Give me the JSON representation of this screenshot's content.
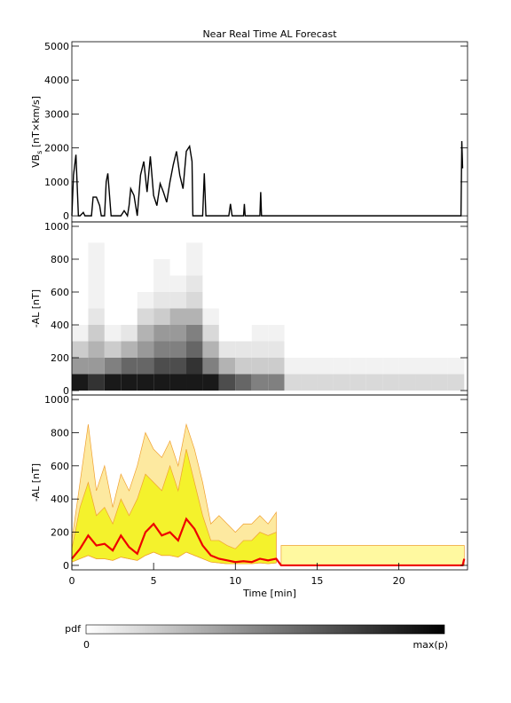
{
  "chart_data": [
    {
      "type": "line",
      "title": "Near Real Time AL Forecast",
      "ylabel": [
        "VB",
        "s",
        " [nT×km/s]"
      ],
      "xlim": [
        0,
        24.2
      ],
      "ylim": [
        -180,
        5130
      ],
      "yticks": [
        0,
        1000,
        2000,
        3000,
        4000,
        5000
      ],
      "series": [
        {
          "color": "#000000",
          "x": [
            0,
            0.1,
            0.25,
            0.4,
            0.5,
            0.7,
            0.8,
            1.2,
            1.3,
            1.5,
            1.7,
            1.8,
            1.95,
            2.0,
            2.1,
            2.2,
            2.4,
            2.6,
            2.8,
            3.0,
            3.2,
            3.4,
            3.5,
            3.6,
            3.8,
            4.0,
            4.2,
            4.4,
            4.6,
            4.8,
            5.0,
            5.2,
            5.4,
            5.6,
            5.8,
            6.0,
            6.2,
            6.4,
            6.6,
            6.8,
            7.0,
            7.2,
            7.35,
            7.4,
            7.5,
            8.0,
            8.1,
            8.2,
            8.3,
            8.4,
            9.0,
            9.6,
            9.7,
            9.8,
            10.5,
            10.55,
            10.6,
            11.5,
            11.55,
            11.6,
            23.8,
            23.85,
            23.9
          ],
          "values": [
            0,
            1200,
            1800,
            0,
            0,
            100,
            0,
            0,
            550,
            550,
            300,
            0,
            0,
            0,
            1000,
            1250,
            0,
            0,
            0,
            0,
            150,
            0,
            300,
            800,
            600,
            0,
            1200,
            1600,
            700,
            1750,
            600,
            300,
            950,
            700,
            400,
            1000,
            1500,
            1900,
            1200,
            800,
            1900,
            2050,
            1600,
            0,
            0,
            0,
            1250,
            0,
            0,
            0,
            0,
            0,
            350,
            0,
            0,
            350,
            0,
            0,
            700,
            0,
            0,
            2200,
            1400
          ]
        }
      ]
    },
    {
      "type": "heatmap",
      "ylabel": "-AL [nT]",
      "xlim": [
        0,
        24.2
      ],
      "ylim": [
        -27,
        1027
      ],
      "yticks": [
        0,
        200,
        400,
        600,
        800,
        1000
      ],
      "xbins": [
        0,
        1,
        2,
        3,
        4,
        5,
        6,
        7,
        8,
        9,
        10,
        11,
        12,
        13,
        14,
        15,
        16,
        17,
        18,
        19,
        20,
        21,
        22,
        23,
        24
      ],
      "ybins": [
        0,
        100,
        200,
        300,
        400,
        500,
        600,
        700,
        800,
        900
      ],
      "z": [
        [
          0.9,
          0.4,
          0.2,
          0.05,
          0,
          0,
          0,
          0,
          0
        ],
        [
          0.8,
          0.4,
          0.3,
          0.2,
          0.1,
          0.05,
          0.05,
          0.05,
          0.05
        ],
        [
          0.9,
          0.5,
          0.2,
          0.05,
          0,
          0,
          0,
          0,
          0
        ],
        [
          0.9,
          0.6,
          0.3,
          0.1,
          0,
          0,
          0,
          0,
          0
        ],
        [
          0.9,
          0.6,
          0.4,
          0.3,
          0.15,
          0.05,
          0,
          0,
          0
        ],
        [
          0.9,
          0.7,
          0.5,
          0.4,
          0.2,
          0.1,
          0.05,
          0.05,
          0
        ],
        [
          0.9,
          0.7,
          0.5,
          0.4,
          0.3,
          0.1,
          0.05,
          0,
          0
        ],
        [
          0.9,
          0.8,
          0.6,
          0.5,
          0.3,
          0.15,
          0.1,
          0.05,
          0.05
        ],
        [
          0.9,
          0.5,
          0.3,
          0.15,
          0.05,
          0,
          0,
          0,
          0
        ],
        [
          0.7,
          0.3,
          0.1,
          0,
          0,
          0,
          0,
          0,
          0
        ],
        [
          0.6,
          0.2,
          0.1,
          0,
          0,
          0,
          0,
          0,
          0
        ],
        [
          0.5,
          0.2,
          0.1,
          0.05,
          0,
          0,
          0,
          0,
          0
        ],
        [
          0.5,
          0.2,
          0.1,
          0.05,
          0,
          0,
          0,
          0,
          0
        ],
        [
          0.15,
          0.05,
          0,
          0,
          0,
          0,
          0,
          0,
          0
        ],
        [
          0.15,
          0.05,
          0,
          0,
          0,
          0,
          0,
          0,
          0
        ],
        [
          0.15,
          0.05,
          0,
          0,
          0,
          0,
          0,
          0,
          0
        ],
        [
          0.15,
          0.05,
          0,
          0,
          0,
          0,
          0,
          0,
          0
        ],
        [
          0.15,
          0.05,
          0,
          0,
          0,
          0,
          0,
          0,
          0
        ],
        [
          0.15,
          0.05,
          0,
          0,
          0,
          0,
          0,
          0,
          0
        ],
        [
          0.15,
          0.05,
          0,
          0,
          0,
          0,
          0,
          0,
          0
        ],
        [
          0.15,
          0.05,
          0,
          0,
          0,
          0,
          0,
          0,
          0
        ],
        [
          0.15,
          0.05,
          0,
          0,
          0,
          0,
          0,
          0,
          0
        ],
        [
          0.15,
          0.05,
          0,
          0,
          0,
          0,
          0,
          0,
          0
        ],
        [
          0.15,
          0.05,
          0,
          0,
          0,
          0,
          0,
          0,
          0
        ]
      ]
    },
    {
      "type": "band",
      "ylabel": "-AL [nT]",
      "xlabel": "Time [min]",
      "xlim": [
        0,
        24.2
      ],
      "ylim": [
        -27,
        1027
      ],
      "yticks": [
        0,
        200,
        400,
        600,
        800,
        1000
      ],
      "xticks": [
        0,
        5,
        10,
        15,
        20
      ],
      "series": [
        {
          "color": "#fff9a0",
          "x": [
            12.8,
            24
          ],
          "lower": [
            0,
            0
          ],
          "upper": [
            120,
            120
          ]
        },
        {
          "color": "#fde9a0",
          "x": [
            0,
            0.5,
            1,
            1.5,
            2,
            2.5,
            3,
            3.5,
            4,
            4.5,
            5,
            5.5,
            6,
            6.5,
            7,
            7.5,
            8,
            8.5,
            9,
            9.5,
            10,
            10.5,
            11,
            11.5,
            12,
            12.5
          ],
          "lower": [
            20,
            40,
            60,
            40,
            40,
            30,
            50,
            40,
            30,
            60,
            80,
            60,
            60,
            50,
            80,
            60,
            40,
            20,
            15,
            10,
            10,
            10,
            10,
            15,
            10,
            15
          ],
          "upper": [
            150,
            500,
            850,
            450,
            600,
            350,
            550,
            450,
            600,
            800,
            700,
            650,
            750,
            600,
            850,
            700,
            500,
            250,
            300,
            250,
            200,
            250,
            250,
            300,
            250,
            320
          ]
        },
        {
          "color": "#f4f22c",
          "x": [
            0,
            0.5,
            1,
            1.5,
            2,
            2.5,
            3,
            3.5,
            4,
            4.5,
            5,
            5.5,
            6,
            6.5,
            7,
            7.5,
            8,
            8.5,
            9,
            9.5,
            10,
            10.5,
            11,
            11.5,
            12,
            12.5
          ],
          "lower": [
            20,
            40,
            60,
            40,
            40,
            30,
            50,
            40,
            30,
            60,
            80,
            60,
            60,
            50,
            80,
            60,
            40,
            20,
            15,
            10,
            10,
            10,
            10,
            15,
            10,
            15
          ],
          "upper": [
            100,
            350,
            500,
            300,
            350,
            250,
            400,
            300,
            400,
            550,
            500,
            450,
            600,
            450,
            700,
            500,
            300,
            150,
            150,
            120,
            100,
            150,
            150,
            200,
            180,
            200
          ]
        },
        {
          "color": "#ee0000",
          "x": [
            0,
            0.5,
            1,
            1.5,
            2,
            2.5,
            3,
            3.5,
            4,
            4.5,
            5,
            5.5,
            6,
            6.5,
            7,
            7.5,
            8,
            8.5,
            9,
            9.5,
            10,
            10.5,
            11,
            11.5,
            12,
            12.5,
            12.8,
            23.9,
            24
          ],
          "values": [
            40,
            100,
            180,
            120,
            130,
            90,
            180,
            110,
            70,
            200,
            250,
            180,
            200,
            150,
            280,
            220,
            120,
            60,
            40,
            30,
            20,
            25,
            20,
            40,
            30,
            40,
            0,
            0,
            40
          ]
        }
      ]
    }
  ],
  "colorbar": {
    "label": "pdf",
    "min_label": "0",
    "max_label": "max(p)"
  }
}
